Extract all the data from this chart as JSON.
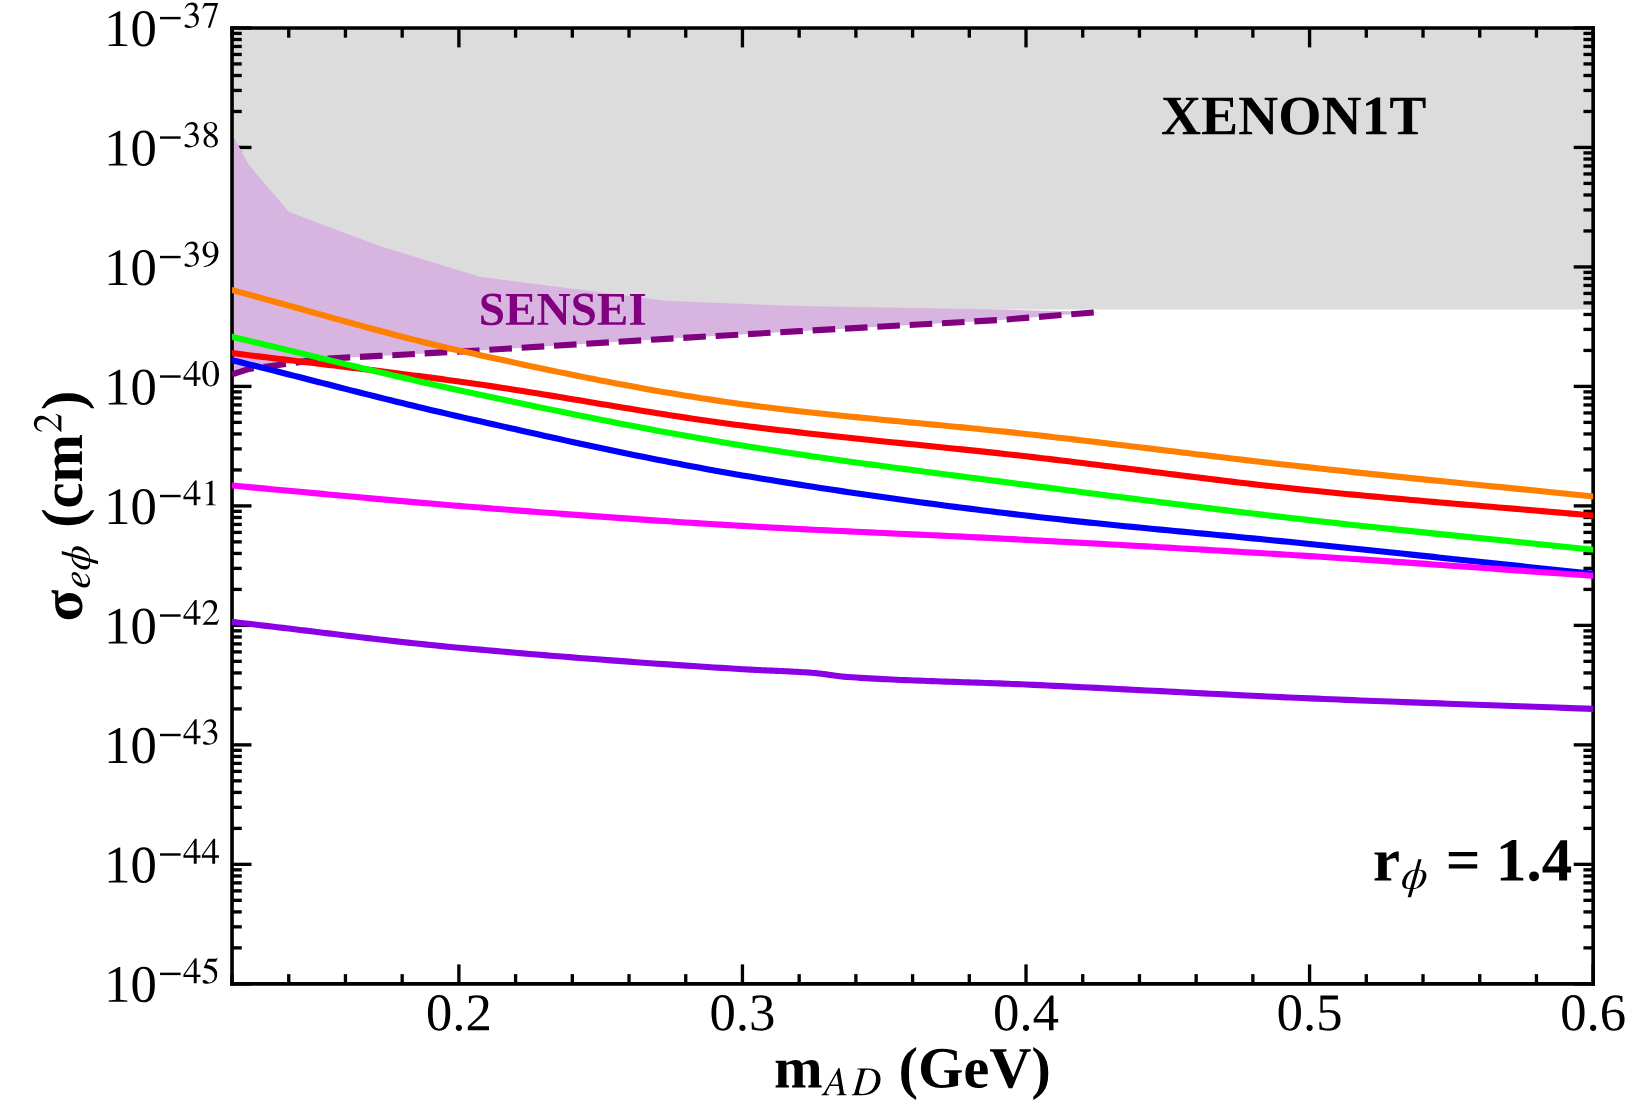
{
  "chart_data": {
    "type": "line",
    "xlabel": "m$_{A}$$_{D}$ (GeV)",
    "ylabel": "σ$_{eϕ}$ (cm$^{2}$)",
    "log": "y",
    "grid": false,
    "line_style": "solid",
    "marker": "none",
    "xlim": [
      0.12,
      0.6
    ],
    "xticks": [
      0.2,
      0.3,
      0.4,
      0.5,
      0.6
    ],
    "ylim": [
      1e-45,
      1e-37
    ],
    "yticks": [
      {
        "value": 1e-45,
        "label": "10$^{−45}$"
      },
      {
        "value": 1e-44,
        "label": "10$^{−44}$"
      },
      {
        "value": 1e-43,
        "label": "10$^{−43}$"
      },
      {
        "value": 1e-42,
        "label": "10$^{−42}$"
      },
      {
        "value": 1e-41,
        "label": "10$^{−41}$"
      },
      {
        "value": 1e-40,
        "label": "10$^{−40}$"
      },
      {
        "value": 1e-39,
        "label": "10$^{−39}$"
      },
      {
        "value": 1e-38,
        "label": "10$^{−38}$"
      },
      {
        "value": 1e-37,
        "label": "10$^{−37}$"
      }
    ],
    "bands": [
      {
        "axis": "y",
        "from": 4.4e-40,
        "to": 1e-37,
        "label": "XENON1T",
        "color": "#dcdcdc"
      }
    ],
    "annotations": [
      "r$_{ϕ}$ = 1.4"
    ],
    "series": [
      {
        "name": "SENSEI",
        "type": "area",
        "color": "#d8b4e0",
        "x": [
          0.12,
          0.126,
          0.14,
          0.151,
          0.172,
          0.207,
          0.273,
          0.32,
          0.391,
          0.426
        ],
        "values": [
          1.3e-38,
          7.1e-39,
          2.9e-39,
          2.3e-39,
          1.5e-39,
          8.3e-40,
          5.2e-40,
          4.7e-40,
          4.4e-40,
          4.2e-40
        ]
      },
      {
        "type": "line",
        "color": "#800080",
        "line_style": "dashed",
        "x": [
          0.12,
          0.126,
          0.14,
          0.151,
          0.172,
          0.207,
          0.273,
          0.32,
          0.391,
          0.426
        ],
        "values": [
          1.26e-40,
          1.4e-40,
          1.55e-40,
          1.7e-40,
          1.8e-40,
          2e-40,
          2.5e-40,
          2.9e-40,
          3.6e-40,
          4.2e-40
        ]
      },
      {
        "color": "#ff8000",
        "x": [
          0.12,
          0.2,
          0.3,
          0.4,
          0.5,
          0.6
        ],
        "values": [
          6.4e-40,
          2e-40,
          7.1e-41,
          4e-41,
          2.1e-41,
          1.2e-41
        ]
      },
      {
        "color": "#ff0000",
        "x": [
          0.12,
          0.2,
          0.3,
          0.4,
          0.5,
          0.6
        ],
        "values": [
          1.9e-40,
          1.1e-40,
          4.7e-41,
          2.6e-41,
          1.35e-41,
          8.3e-42
        ]
      },
      {
        "color": "#00ff00",
        "x": [
          0.12,
          0.2,
          0.3,
          0.4,
          0.5,
          0.6
        ],
        "values": [
          2.6e-40,
          9.3e-41,
          3.2e-41,
          1.5e-41,
          7.6e-42,
          4.3e-42
        ]
      },
      {
        "color": "#0000ff",
        "x": [
          0.12,
          0.2,
          0.3,
          0.4,
          0.5,
          0.6
        ],
        "values": [
          1.66e-40,
          5.6e-41,
          1.8e-41,
          8.3e-42,
          4.8e-42,
          2.7e-42
        ]
      },
      {
        "color": "#ff00ff",
        "x": [
          0.12,
          0.2,
          0.3,
          0.4,
          0.5,
          0.6
        ],
        "values": [
          1.48e-41,
          1e-41,
          6.8e-42,
          5.2e-42,
          3.8e-42,
          2.6e-42
        ]
      },
      {
        "color": "#8c00e6",
        "x": [
          0.12,
          0.2,
          0.3,
          0.325,
          0.337,
          0.4,
          0.5,
          0.6
        ],
        "values": [
          1.07e-42,
          6.5e-43,
          4.3e-43,
          4e-43,
          3.7e-43,
          3.2e-43,
          2.45e-43,
          2e-43
        ]
      }
    ]
  }
}
